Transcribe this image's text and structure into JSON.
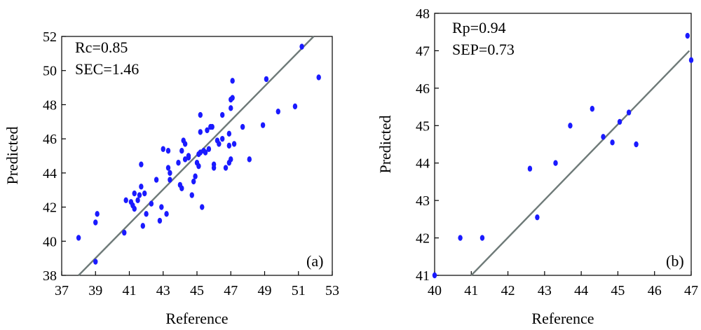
{
  "chart_data": [
    {
      "type": "scatter",
      "panel_label": "(a)",
      "xlabel": "Reference",
      "ylabel": "Predicted",
      "xlim": [
        37,
        53
      ],
      "ylim": [
        38,
        52
      ],
      "xticks": [
        37,
        39,
        41,
        43,
        45,
        47,
        49,
        51,
        53
      ],
      "yticks": [
        38,
        40,
        42,
        44,
        46,
        48,
        50,
        52
      ],
      "annotations": [
        "Rc=0.85",
        "SEC=1.46"
      ],
      "fit_line": {
        "x": [
          38.0,
          51.9
        ],
        "y": [
          38.0,
          52.0
        ]
      },
      "marker_color": "#1a1aff",
      "line_color": "#6e7a78",
      "points": [
        [
          38.0,
          40.2
        ],
        [
          39.0,
          38.8
        ],
        [
          39.0,
          41.1
        ],
        [
          39.1,
          41.6
        ],
        [
          40.7,
          40.5
        ],
        [
          40.8,
          42.4
        ],
        [
          41.1,
          42.3
        ],
        [
          41.2,
          42.1
        ],
        [
          41.3,
          41.9
        ],
        [
          41.3,
          42.8
        ],
        [
          41.5,
          42.4
        ],
        [
          41.6,
          42.7
        ],
        [
          41.7,
          43.2
        ],
        [
          41.7,
          44.5
        ],
        [
          41.8,
          40.9
        ],
        [
          41.9,
          42.8
        ],
        [
          42.0,
          41.6
        ],
        [
          42.3,
          42.2
        ],
        [
          42.6,
          43.6
        ],
        [
          42.8,
          41.2
        ],
        [
          42.9,
          42.0
        ],
        [
          43.0,
          45.4
        ],
        [
          43.2,
          41.6
        ],
        [
          43.3,
          45.3
        ],
        [
          43.3,
          44.3
        ],
        [
          43.4,
          44.0
        ],
        [
          43.4,
          43.6
        ],
        [
          43.9,
          44.6
        ],
        [
          44.0,
          43.3
        ],
        [
          44.1,
          45.3
        ],
        [
          44.1,
          43.1
        ],
        [
          44.2,
          45.9
        ],
        [
          44.3,
          45.7
        ],
        [
          44.3,
          44.8
        ],
        [
          44.5,
          44.9
        ],
        [
          44.5,
          45.0
        ],
        [
          44.7,
          42.7
        ],
        [
          44.8,
          43.5
        ],
        [
          44.9,
          43.8
        ],
        [
          45.0,
          44.6
        ],
        [
          45.1,
          45.1
        ],
        [
          45.1,
          44.4
        ],
        [
          45.2,
          45.2
        ],
        [
          45.2,
          47.4
        ],
        [
          45.2,
          46.4
        ],
        [
          45.3,
          42.0
        ],
        [
          45.4,
          45.3
        ],
        [
          45.5,
          45.2
        ],
        [
          45.6,
          46.5
        ],
        [
          45.7,
          45.4
        ],
        [
          45.8,
          46.7
        ],
        [
          45.9,
          46.7
        ],
        [
          46.0,
          44.3
        ],
        [
          46.0,
          44.5
        ],
        [
          46.2,
          45.9
        ],
        [
          46.3,
          45.7
        ],
        [
          46.5,
          46.0
        ],
        [
          46.5,
          47.4
        ],
        [
          46.7,
          44.3
        ],
        [
          46.9,
          44.6
        ],
        [
          46.9,
          45.6
        ],
        [
          46.9,
          46.3
        ],
        [
          47.0,
          44.8
        ],
        [
          47.0,
          48.3
        ],
        [
          47.0,
          47.8
        ],
        [
          47.1,
          49.4
        ],
        [
          47.1,
          48.4
        ],
        [
          47.2,
          45.7
        ],
        [
          47.7,
          46.7
        ],
        [
          48.1,
          44.8
        ],
        [
          48.9,
          46.8
        ],
        [
          49.1,
          49.5
        ],
        [
          49.8,
          47.6
        ],
        [
          50.8,
          47.9
        ],
        [
          51.2,
          51.4
        ],
        [
          52.2,
          49.6
        ]
      ]
    },
    {
      "type": "scatter",
      "panel_label": "(b)",
      "xlabel": "Reference",
      "ylabel": "Predicted",
      "xlim": [
        40,
        47
      ],
      "ylim": [
        41,
        48
      ],
      "xticks": [
        40,
        41,
        42,
        43,
        44,
        45,
        46,
        47
      ],
      "yticks": [
        41,
        42,
        43,
        44,
        45,
        46,
        47,
        48
      ],
      "annotations": [
        "Rp=0.94",
        "SEP=0.73"
      ],
      "fit_line": {
        "x": [
          41.0,
          46.95
        ],
        "y": [
          41.0,
          47.0
        ]
      },
      "marker_color": "#1a1aff",
      "line_color": "#6e7a78",
      "points": [
        [
          40.0,
          41.0
        ],
        [
          40.7,
          42.0
        ],
        [
          41.3,
          42.0
        ],
        [
          42.6,
          43.85
        ],
        [
          42.8,
          42.55
        ],
        [
          43.3,
          44.0
        ],
        [
          43.7,
          45.0
        ],
        [
          44.3,
          45.45
        ],
        [
          44.6,
          44.7
        ],
        [
          44.85,
          44.55
        ],
        [
          45.05,
          45.1
        ],
        [
          45.3,
          45.35
        ],
        [
          45.5,
          44.5
        ],
        [
          46.9,
          47.4
        ],
        [
          47.0,
          46.75
        ]
      ]
    }
  ]
}
